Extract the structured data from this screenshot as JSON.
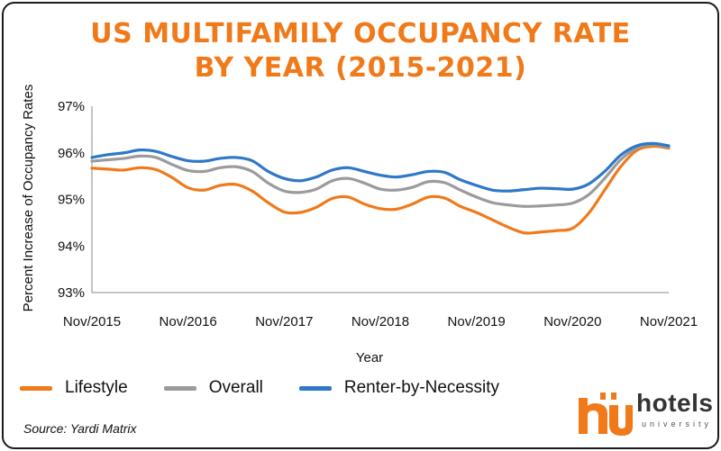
{
  "colors": {
    "title": "#f07a1a",
    "lifestyle": "#f07a1a",
    "overall": "#9b9b9b",
    "rbn": "#2e78c8"
  },
  "chart_data": {
    "type": "line",
    "title_line1": "US MULTIFAMILY OCCUPANCY RATE",
    "title_line2": "BY YEAR (2015-2021)",
    "xlabel": "Year",
    "ylabel": "Percent Increase of Occupancy Rates",
    "ylim": [
      93,
      97
    ],
    "yticks": [
      "93%",
      "94%",
      "95%",
      "96%",
      "97%"
    ],
    "xticks": [
      "Nov/2015",
      "Nov/2016",
      "Nov/2017",
      "Nov/2018",
      "Nov/2019",
      "Nov/2020",
      "Nov/2021"
    ],
    "grid": false,
    "legend_position": "bottom",
    "x": [
      "Nov/2015",
      "Jan/2016",
      "Mar/2016",
      "May/2016",
      "Jul/2016",
      "Sep/2016",
      "Nov/2016",
      "Jan/2017",
      "Mar/2017",
      "May/2017",
      "Jul/2017",
      "Sep/2017",
      "Nov/2017",
      "Jan/2018",
      "Mar/2018",
      "May/2018",
      "Jul/2018",
      "Sep/2018",
      "Nov/2018",
      "Jan/2019",
      "Mar/2019",
      "May/2019",
      "Jul/2019",
      "Sep/2019",
      "Nov/2019",
      "Jan/2020",
      "Mar/2020",
      "May/2020",
      "Jul/2020",
      "Sep/2020",
      "Nov/2020",
      "Jan/2021",
      "Mar/2021",
      "May/2021",
      "Jul/2021",
      "Sep/2021",
      "Nov/2021"
    ],
    "series": [
      {
        "name": "Lifestyle",
        "values": [
          95.67,
          95.65,
          95.63,
          95.68,
          95.64,
          95.47,
          95.25,
          95.2,
          95.3,
          95.32,
          95.18,
          94.93,
          94.73,
          94.72,
          94.83,
          95.02,
          95.05,
          94.9,
          94.8,
          94.79,
          94.9,
          95.05,
          95.03,
          94.85,
          94.72,
          94.56,
          94.4,
          94.28,
          94.3,
          94.33,
          94.38,
          94.7,
          95.2,
          95.7,
          96.05,
          96.14,
          96.1
        ]
      },
      {
        "name": "Overall",
        "values": [
          95.82,
          95.85,
          95.88,
          95.93,
          95.9,
          95.75,
          95.62,
          95.6,
          95.68,
          95.7,
          95.6,
          95.35,
          95.18,
          95.15,
          95.22,
          95.4,
          95.45,
          95.35,
          95.22,
          95.2,
          95.26,
          95.38,
          95.36,
          95.2,
          95.05,
          94.93,
          94.88,
          94.85,
          94.86,
          94.88,
          94.92,
          95.1,
          95.45,
          95.85,
          96.1,
          96.18,
          96.12
        ]
      },
      {
        "name": "Renter-by-Necessity",
        "values": [
          95.9,
          95.96,
          96.0,
          96.06,
          96.03,
          95.92,
          95.83,
          95.82,
          95.88,
          95.9,
          95.83,
          95.6,
          95.45,
          95.4,
          95.48,
          95.63,
          95.68,
          95.6,
          95.52,
          95.48,
          95.53,
          95.6,
          95.58,
          95.42,
          95.3,
          95.2,
          95.18,
          95.21,
          95.24,
          95.23,
          95.22,
          95.33,
          95.6,
          95.95,
          96.15,
          96.2,
          96.15
        ]
      }
    ]
  },
  "source": "Source: Yardi Matrix",
  "logo": {
    "text": "hotels",
    "sub": "university"
  }
}
